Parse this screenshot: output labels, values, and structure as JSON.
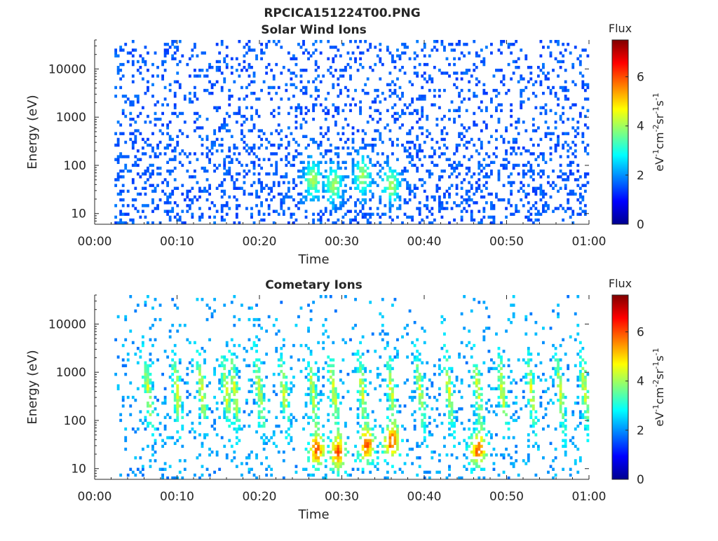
{
  "figure_title": "RPCICA151224T00.PNG",
  "chart_data": [
    {
      "type": "heatmap",
      "title": "Solar Wind Ions",
      "xlabel": "Time",
      "ylabel": "Energy (eV)",
      "yscale": "log",
      "xlim": [
        "00:00",
        "01:00"
      ],
      "ylim": [
        6,
        40000
      ],
      "x_ticks": [
        "00:00",
        "00:10",
        "00:20",
        "00:30",
        "00:40",
        "00:50",
        "01:00"
      ],
      "y_ticks": [
        10,
        100,
        1000,
        10000
      ],
      "y_tick_labels": [
        "10",
        "100",
        "1000",
        "10000"
      ],
      "colorbar": {
        "title": "Flux",
        "label_parts": [
          "eV",
          "-1",
          "cm",
          "-2",
          "sr",
          "-1",
          "s",
          "-1"
        ],
        "range": [
          0,
          7.5
        ],
        "ticks": [
          0,
          2,
          4,
          6
        ],
        "colormap": "jet"
      },
      "data_start_minute": 2.5,
      "typical_level": 0.8,
      "peak_level": 3.5,
      "activity_peaks": [
        {
          "minute": 26.5,
          "energy": 50
        },
        {
          "minute": 29.0,
          "energy": 40
        },
        {
          "minute": 32.5,
          "energy": 60
        },
        {
          "minute": 36.0,
          "energy": 40
        }
      ]
    },
    {
      "type": "heatmap",
      "title": "Cometary Ions",
      "xlabel": "Time",
      "ylabel": "Energy (eV)",
      "yscale": "log",
      "xlim": [
        "00:00",
        "01:00"
      ],
      "ylim": [
        6,
        40000
      ],
      "x_ticks": [
        "00:00",
        "00:10",
        "00:20",
        "00:30",
        "00:40",
        "00:50",
        "01:00"
      ],
      "y_ticks": [
        10,
        100,
        1000,
        10000
      ],
      "y_tick_labels": [
        "10",
        "100",
        "1000",
        "10000"
      ],
      "colorbar": {
        "title": "Flux",
        "label_parts": [
          "eV",
          "-1",
          "cm",
          "-2",
          "sr",
          "-1",
          "s",
          "-1"
        ],
        "range": [
          0,
          7.5
        ],
        "ticks": [
          0,
          2,
          4,
          6
        ],
        "colormap": "jet"
      },
      "data_start_minute": 2.5,
      "typical_level": 2.5,
      "peak_level": 6.5,
      "burst_minutes": [
        6.5,
        10,
        13,
        16,
        17,
        20,
        23,
        26.5,
        29,
        32.5,
        36,
        39.5,
        43,
        46.5,
        49.5,
        53,
        56.5,
        59.5
      ],
      "activity_peaks": [
        {
          "minute": 27.0,
          "energy": 25
        },
        {
          "minute": 29.5,
          "energy": 22
        },
        {
          "minute": 33.0,
          "energy": 30
        },
        {
          "minute": 36.0,
          "energy": 35
        },
        {
          "minute": 46.5,
          "energy": 25
        }
      ]
    }
  ]
}
